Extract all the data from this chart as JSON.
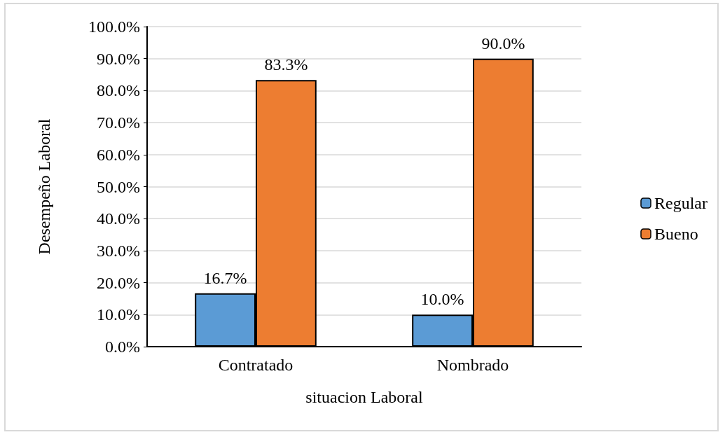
{
  "chart_data": {
    "type": "bar",
    "xlabel": "situacion Laboral",
    "ylabel": "Desempeño Laboral",
    "categories": [
      "Contratado",
      "Nombrado"
    ],
    "series": [
      {
        "name": "Regular",
        "color": "#5b9bd5",
        "values": [
          16.7,
          10.0
        ],
        "value_labels": [
          "16.7%",
          "10.0%"
        ]
      },
      {
        "name": "Bueno",
        "color": "#ed7d31",
        "values": [
          83.3,
          90.0
        ],
        "value_labels": [
          "83.3%",
          "90.0%"
        ]
      }
    ],
    "ylim": [
      0,
      100
    ],
    "yticks": [
      {
        "value": 0,
        "label": "0.0%"
      },
      {
        "value": 10,
        "label": "10.0%"
      },
      {
        "value": 20,
        "label": "20.0%"
      },
      {
        "value": 30,
        "label": "30.0%"
      },
      {
        "value": 40,
        "label": "40.0%"
      },
      {
        "value": 50,
        "label": "50.0%"
      },
      {
        "value": 60,
        "label": "60.0%"
      },
      {
        "value": 70,
        "label": "70.0%"
      },
      {
        "value": 80,
        "label": "80.0%"
      },
      {
        "value": 90,
        "label": "90.0%"
      },
      {
        "value": 100,
        "label": "100.0%"
      }
    ],
    "grid": "y",
    "legend": "right"
  }
}
